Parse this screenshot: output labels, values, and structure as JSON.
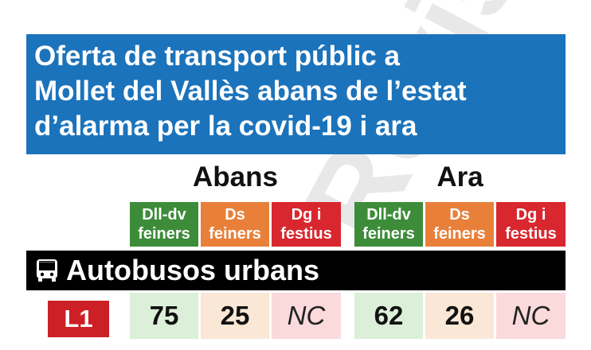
{
  "title": {
    "line1": "Oferta de transport públic a",
    "line2": "Mollet del Vallès abans de l’estat",
    "line3": "d’alarma per la covid-19 i ara"
  },
  "groups": {
    "before": "Abans",
    "now": "Ara"
  },
  "column_headers": {
    "weekdays": [
      "Dll-dv",
      "feiners"
    ],
    "saturdays": [
      "Ds",
      "feiners"
    ],
    "sundays": [
      "Dg i",
      "festius"
    ]
  },
  "section": {
    "icon": "bus-icon",
    "label": "Autobusos urbans"
  },
  "rows": [
    {
      "line": "L1",
      "before": {
        "weekdays": "75",
        "saturdays": "25",
        "sundays": "NC"
      },
      "now": {
        "weekdays": "62",
        "saturdays": "26",
        "sundays": "NC"
      }
    }
  ],
  "watermark": "Revista",
  "colors": {
    "title_bg": "#1b73bb",
    "weekdays": "#3d8c3a",
    "saturdays": "#e8803a",
    "sundays": "#d8272e",
    "line_badge": "#cc1f26",
    "section_bar": "#000000"
  }
}
